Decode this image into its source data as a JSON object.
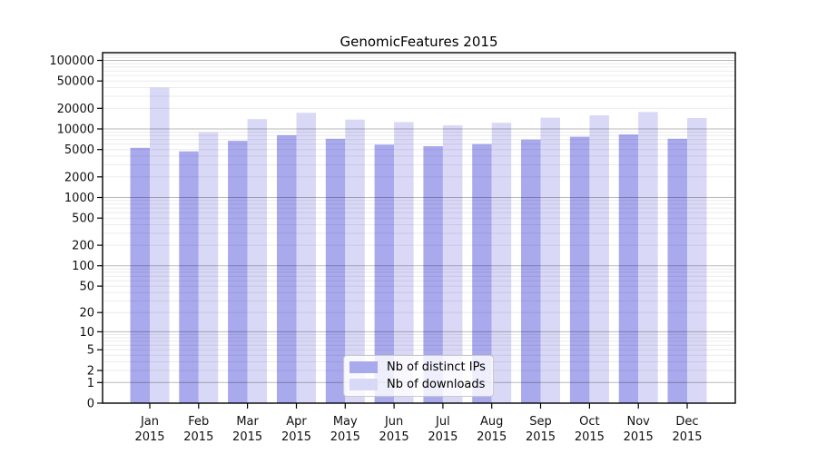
{
  "figure": {
    "title": "GenomicFeatures 2015"
  },
  "chart_data": {
    "type": "bar",
    "title": "GenomicFeatures 2015",
    "categories": [
      "Jan",
      "Feb",
      "Mar",
      "Apr",
      "May",
      "Jun",
      "Jul",
      "Aug",
      "Sep",
      "Oct",
      "Nov",
      "Dec"
    ],
    "x_tick_second_line": "2015",
    "series": [
      {
        "name": "Nb of distinct IPs",
        "key": "distinct-ips",
        "color": "#a9a9ee",
        "values": [
          5300,
          4700,
          6700,
          8100,
          7200,
          5900,
          5600,
          6000,
          7000,
          7700,
          8300,
          7200
        ]
      },
      {
        "name": "Nb of downloads",
        "key": "downloads",
        "color": "#d9d9f7",
        "values": [
          40000,
          8900,
          13900,
          17200,
          13700,
          12600,
          11300,
          12300,
          14600,
          15800,
          17700,
          14400
        ]
      }
    ],
    "yscale": "log10(value+1)",
    "ylim": [
      0,
      100000
    ],
    "yticks": [
      0,
      1,
      2,
      5,
      10,
      20,
      50,
      100,
      200,
      500,
      1000,
      2000,
      5000,
      10000,
      20000,
      50000,
      100000
    ],
    "ytick_labels": [
      "0",
      "1",
      "2",
      "5",
      "10",
      "20",
      "50",
      "100",
      "200",
      "500",
      "1000",
      "2000",
      "5000",
      "10000",
      "20000",
      "50000",
      "100000"
    ],
    "grid": true,
    "grid_minor": true,
    "legend": {
      "position": "inside-bottom-center",
      "entries": [
        "Nb of distinct IPs",
        "Nb of downloads"
      ]
    },
    "colors": {
      "axis": "#000000",
      "major_grid": "rgba(0,0,0,0.28)",
      "minor_grid": "rgba(0,0,0,0.08)",
      "tick_label": "#111111",
      "legend_border": "#c9c9c9"
    }
  }
}
